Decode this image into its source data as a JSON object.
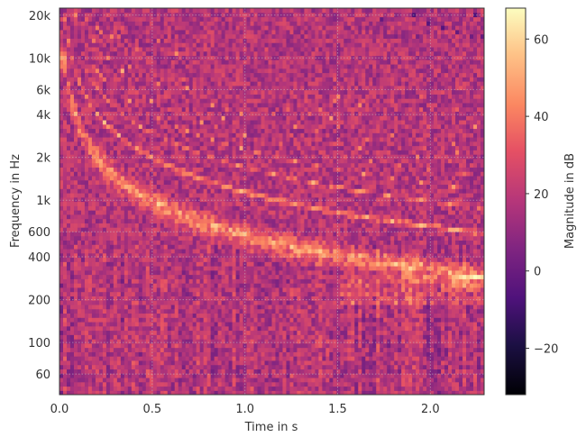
{
  "chart_data": {
    "type": "heatmap",
    "title": "",
    "xlabel": "Time in s",
    "ylabel": "Frequency in Hz",
    "xlim": [
      0.0,
      2.29
    ],
    "ylim": [
      43,
      22400
    ],
    "yscale": "log",
    "grid": true,
    "xticks": [
      0.0,
      0.5,
      1.0,
      1.5,
      2.0
    ],
    "xtick_labels": [
      "0.0",
      "0.5",
      "1.0",
      "1.5",
      "2.0"
    ],
    "yticks": [
      60,
      100,
      200,
      400,
      600,
      1000,
      2000,
      4000,
      6000,
      10000,
      20000
    ],
    "ytick_labels": [
      "60",
      "100",
      "200",
      "400",
      "600",
      "1k",
      "2k",
      "4k",
      "6k",
      "10k",
      "20k"
    ],
    "colormap": "magma",
    "colorbar": {
      "label": "Magnitude in dB",
      "range": [
        -32,
        68
      ],
      "ticks": [
        -20,
        0,
        20,
        40,
        60
      ],
      "tick_labels": [
        "−20",
        "0",
        "20",
        "40",
        "60"
      ]
    }
  }
}
